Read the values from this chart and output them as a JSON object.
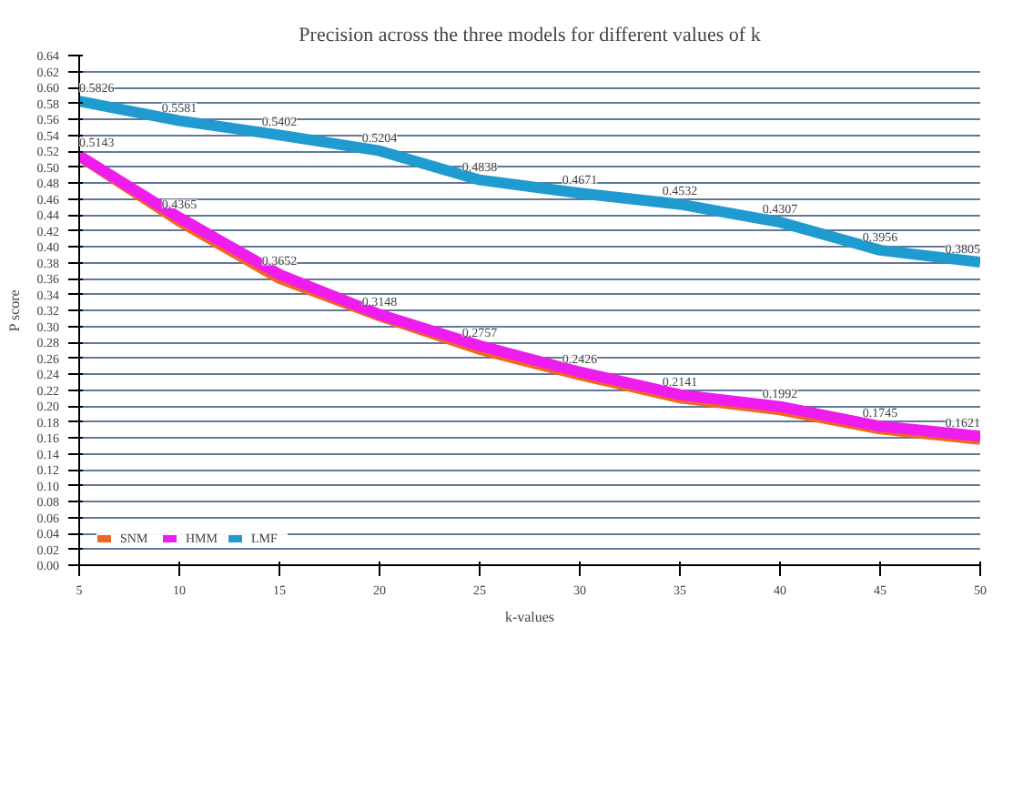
{
  "chart_data": {
    "type": "line",
    "title": "Precision across the three models for different values of k",
    "xlabel": "k-values",
    "ylabel": "P score",
    "x": [
      5,
      10,
      15,
      20,
      25,
      30,
      35,
      40,
      45,
      50
    ],
    "series": [
      {
        "name": "SNM",
        "color": "#f26522",
        "values": [
          0.514,
          0.432,
          0.36,
          0.313,
          0.271,
          0.239,
          0.21,
          0.195,
          0.171,
          0.158
        ]
      },
      {
        "name": "HMM",
        "color": "#ee1cee",
        "values": [
          0.5143,
          0.4365,
          0.3652,
          0.3148,
          0.2757,
          0.2426,
          0.2141,
          0.1992,
          0.1745,
          0.1621
        ],
        "value_labels": [
          "0.5143",
          "0.4365",
          "0.3652",
          "0.3148",
          "0.2757",
          "0.2426",
          "0.2141",
          "0.1992",
          "0.1745",
          "0.1621"
        ]
      },
      {
        "name": "LMF",
        "color": "#1f9bcf",
        "values": [
          0.5826,
          0.5581,
          0.5402,
          0.5204,
          0.4838,
          0.4671,
          0.4532,
          0.4307,
          0.3956,
          0.3805
        ],
        "value_labels": [
          "0.5826",
          "0.5581",
          "0.5402",
          "0.5204",
          "0.4838",
          "0.4671",
          "0.4532",
          "0.4307",
          "0.3956",
          "0.3805"
        ]
      }
    ],
    "xlim": [
      5,
      50
    ],
    "xticks": [
      5,
      10,
      15,
      20,
      25,
      30,
      35,
      40,
      45,
      50
    ],
    "ylim": [
      0,
      0.64
    ],
    "yticks": [
      {
        "value": 0,
        "label": "0.00"
      },
      {
        "value": 0.02,
        "label": "0.02"
      },
      {
        "value": 0.04,
        "label": "0.04"
      },
      {
        "value": 0.06,
        "label": "0.06"
      },
      {
        "value": 0.08,
        "label": "0.08"
      },
      {
        "value": 0.1,
        "label": "0.10"
      },
      {
        "value": 0.12,
        "label": "0.12"
      },
      {
        "value": 0.14,
        "label": "0.14"
      },
      {
        "value": 0.16,
        "label": "0.16"
      },
      {
        "value": 0.18,
        "label": "0.18"
      },
      {
        "value": 0.2,
        "label": "0.20"
      },
      {
        "value": 0.22,
        "label": "0.22"
      },
      {
        "value": 0.24,
        "label": "0.24"
      },
      {
        "value": 0.26,
        "label": "0.26"
      },
      {
        "value": 0.28,
        "label": "0.28"
      },
      {
        "value": 0.3,
        "label": "0.30"
      },
      {
        "value": 0.32,
        "label": "0.32"
      },
      {
        "value": 0.34,
        "label": "0.34"
      },
      {
        "value": 0.36,
        "label": "0.36"
      },
      {
        "value": 0.38,
        "label": "0.38"
      },
      {
        "value": 0.4,
        "label": "0.40"
      },
      {
        "value": 0.42,
        "label": "0.42"
      },
      {
        "value": 0.44,
        "label": "0.44"
      },
      {
        "value": 0.46,
        "label": "0.46"
      },
      {
        "value": 0.48,
        "label": "0.48"
      },
      {
        "value": 0.5,
        "label": "0.50"
      },
      {
        "value": 0.52,
        "label": "0.52"
      },
      {
        "value": 0.54,
        "label": "0.54"
      },
      {
        "value": 0.56,
        "label": "0.56"
      },
      {
        "value": 0.58,
        "label": "0.58"
      },
      {
        "value": 0.6,
        "label": "0.60"
      },
      {
        "value": 0.62,
        "label": "0.62"
      },
      {
        "value": 0.64,
        "label": "0.64"
      }
    ],
    "grid": "y",
    "legend": "bottom left",
    "marker": "none",
    "line_style": "solid"
  }
}
